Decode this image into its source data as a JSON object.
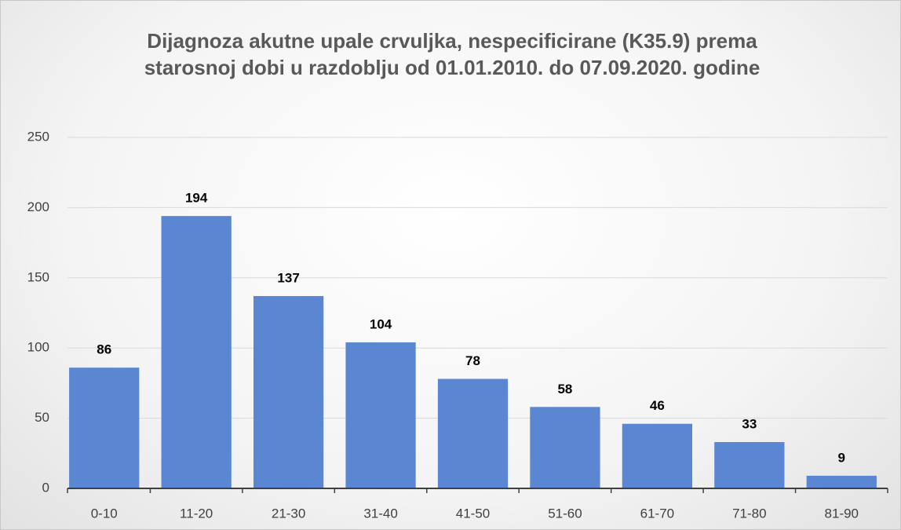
{
  "chart_data": {
    "type": "bar",
    "title": "Dijagnoza akutne upale crvuljka, nespecificirane (K35.9) prema starosnoj dobi u razdoblju od 01.01.2010. do 07.09.2020. godine",
    "categories": [
      "0-10",
      "11-20",
      "21-30",
      "31-40",
      "41-50",
      "51-60",
      "61-70",
      "71-80",
      "81-90"
    ],
    "values": [
      86,
      194,
      137,
      104,
      78,
      58,
      46,
      33,
      9
    ],
    "color": "#5b86d1",
    "ylim": [
      0,
      250
    ],
    "yticks": [
      0,
      50,
      100,
      150,
      200,
      250
    ],
    "grid": true
  }
}
